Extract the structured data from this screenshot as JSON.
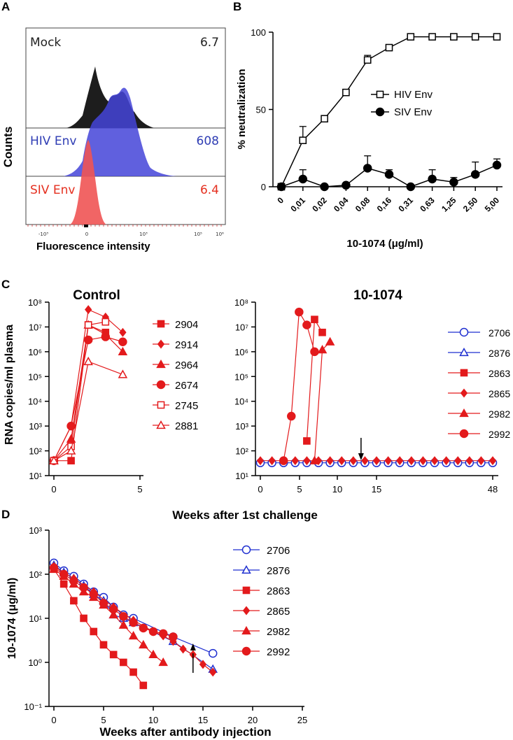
{
  "panels": {
    "a": "A",
    "b": "B",
    "c": "C",
    "d": "D"
  },
  "panel_a": {
    "ylabel": "Counts",
    "xlabel": "Fluorescence intensity",
    "rows": [
      {
        "name": "Mock",
        "value": "6.7",
        "color": "#222222"
      },
      {
        "name": "HIV Env",
        "value": "608",
        "color": "#2f3db4"
      },
      {
        "name": "SIV Env",
        "value": "6.4",
        "color": "#e53020"
      }
    ],
    "ticks": [
      "-10³",
      "0",
      "10³",
      "10⁵",
      "10⁶"
    ]
  },
  "chart_data": [
    {
      "id": "B",
      "type": "line",
      "xlabel": "10-1074 (μg/ml)",
      "ylabel": "% neutralization",
      "categories": [
        "0",
        "0,01",
        "0,02",
        "0,04",
        "0,08",
        "0,16",
        "0,31",
        "0,63",
        "1,25",
        "2,50",
        "5,00"
      ],
      "ylim": [
        0,
        100
      ],
      "yticks": [
        "0",
        "50",
        "100"
      ],
      "series": [
        {
          "name": "HIV Env",
          "marker": "open-square",
          "values": [
            0,
            30,
            44,
            61,
            82,
            90,
            97,
            97,
            97,
            97,
            97
          ],
          "errors": [
            0,
            9,
            0,
            2,
            3,
            2,
            0,
            0,
            0,
            0,
            0
          ]
        },
        {
          "name": "SIV Env",
          "marker": "filled-circle",
          "values": [
            0,
            5,
            0,
            1,
            12,
            8,
            0,
            5,
            3,
            8,
            14
          ],
          "errors": [
            0,
            6,
            0,
            0,
            8,
            3,
            0,
            6,
            3,
            8,
            4
          ]
        }
      ]
    },
    {
      "id": "C-control",
      "type": "line",
      "title": "Control",
      "ylabel": "RNA copies/ml plasma",
      "xlim": [
        0,
        5
      ],
      "xticks": [
        "0",
        "5"
      ],
      "yticks": [
        "10¹",
        "10²",
        "10³",
        "10⁴",
        "10⁵",
        "10⁶",
        "10⁷",
        "10⁸"
      ],
      "series": [
        {
          "name": "2904",
          "marker": "filled-square",
          "x": [
            0,
            1,
            2,
            3
          ],
          "y": [
            40,
            40,
            12000000.0,
            6000000.0
          ]
        },
        {
          "name": "2914",
          "marker": "filled-diamond",
          "x": [
            0,
            1,
            2,
            3,
            4
          ],
          "y": [
            40,
            1000,
            50000000.0,
            25000000.0,
            6000000.0
          ]
        },
        {
          "name": "2964",
          "marker": "filled-triangle",
          "x": [
            0,
            1,
            2,
            3,
            4
          ],
          "y": [
            40,
            300,
            12000000.0,
            5000000.0,
            1000000.0
          ]
        },
        {
          "name": "2674",
          "marker": "filled-circle",
          "x": [
            0,
            1,
            2,
            3,
            4
          ],
          "y": [
            40,
            1000,
            3000000.0,
            4000000.0,
            2500000.0
          ]
        },
        {
          "name": "2745",
          "marker": "open-square",
          "x": [
            0,
            1,
            2,
            3
          ],
          "y": [
            40,
            150,
            12000000.0,
            16000000.0
          ]
        },
        {
          "name": "2881",
          "marker": "open-triangle",
          "x": [
            0,
            1,
            2,
            4
          ],
          "y": [
            40,
            100,
            400000.0,
            120000.0
          ]
        }
      ]
    },
    {
      "id": "C-10-1074",
      "type": "line",
      "title": "10-1074",
      "xticks": [
        "0",
        "5",
        "10",
        "15",
        "48"
      ],
      "arrow_week": 13,
      "series": [
        {
          "name": "2706",
          "marker": "open-circle",
          "color": "#1f2fd0"
        },
        {
          "name": "2876",
          "marker": "open-triangle",
          "color": "#1f2fd0"
        },
        {
          "name": "2863",
          "marker": "filled-square",
          "color": "#e31a1c",
          "x": [
            6,
            7,
            8
          ],
          "y": [
            250,
            20000000.0,
            6000000.0
          ]
        },
        {
          "name": "2865",
          "marker": "filled-diamond",
          "color": "#e31a1c"
        },
        {
          "name": "2982",
          "marker": "filled-triangle",
          "color": "#e31a1c",
          "x": [
            7,
            8,
            9
          ],
          "y": [
            40,
            1200000.0,
            2500000.0
          ]
        },
        {
          "name": "2992",
          "marker": "filled-circle",
          "color": "#e31a1c",
          "x": [
            3,
            4,
            5,
            6,
            7
          ],
          "y": [
            40,
            2500,
            40000000.0,
            12000000.0,
            1000000.0
          ]
        }
      ],
      "baseline": 40,
      "xlabel": "Weeks after 1st  challenge"
    },
    {
      "id": "D",
      "type": "line",
      "ylabel": "10-1074 (μg/ml)",
      "xlabel": "Weeks after antibody injection",
      "xlim": [
        0,
        25
      ],
      "xticks": [
        "0",
        "5",
        "10",
        "15",
        "20",
        "25"
      ],
      "yticks": [
        "10⁻¹",
        "10⁰",
        "10¹",
        "10²",
        "10³"
      ],
      "arrow_week": 14,
      "series": [
        {
          "name": "2706",
          "marker": "open-circle",
          "color": "#1f2fd0",
          "x": [
            0,
            1,
            2,
            3,
            4,
            5,
            6,
            7,
            8,
            12,
            16
          ],
          "y": [
            180,
            120,
            90,
            60,
            40,
            30,
            18,
            12,
            10,
            3.8,
            1.6
          ]
        },
        {
          "name": "2876",
          "marker": "open-triangle",
          "color": "#1f2fd0",
          "x": [
            0,
            1,
            2,
            3,
            4,
            5,
            6,
            7,
            8,
            12,
            16
          ],
          "y": [
            160,
            110,
            80,
            55,
            35,
            25,
            12,
            10,
            8,
            3,
            0.7
          ]
        },
        {
          "name": "2863",
          "marker": "filled-square",
          "color": "#e31a1c",
          "x": [
            0,
            1,
            2,
            3,
            4,
            5,
            6,
            7,
            8,
            9
          ],
          "y": [
            130,
            60,
            25,
            10,
            5,
            2.5,
            1.5,
            1,
            0.6,
            0.3
          ]
        },
        {
          "name": "2865",
          "marker": "filled-diamond",
          "color": "#e31a1c",
          "x": [
            0,
            2,
            4,
            6,
            8,
            10,
            11,
            12,
            13,
            14,
            15,
            16
          ],
          "y": [
            150,
            80,
            40,
            18,
            9,
            5,
            4,
            3,
            2,
            1.5,
            0.9,
            0.6
          ]
        },
        {
          "name": "2982",
          "marker": "filled-triangle",
          "color": "#e31a1c",
          "x": [
            0,
            1,
            2,
            3,
            4,
            5,
            6,
            7,
            8,
            9,
            10,
            11
          ],
          "y": [
            130,
            90,
            60,
            40,
            30,
            20,
            12,
            7,
            4,
            2.5,
            1.5,
            1
          ]
        },
        {
          "name": "2992",
          "marker": "filled-circle",
          "color": "#e31a1c",
          "x": [
            0,
            1,
            2,
            3,
            4,
            5,
            6,
            7,
            8,
            9,
            10,
            11,
            12
          ],
          "y": [
            140,
            100,
            70,
            50,
            35,
            22,
            16,
            11,
            8,
            6,
            5,
            4.5,
            3.8
          ]
        }
      ]
    }
  ]
}
